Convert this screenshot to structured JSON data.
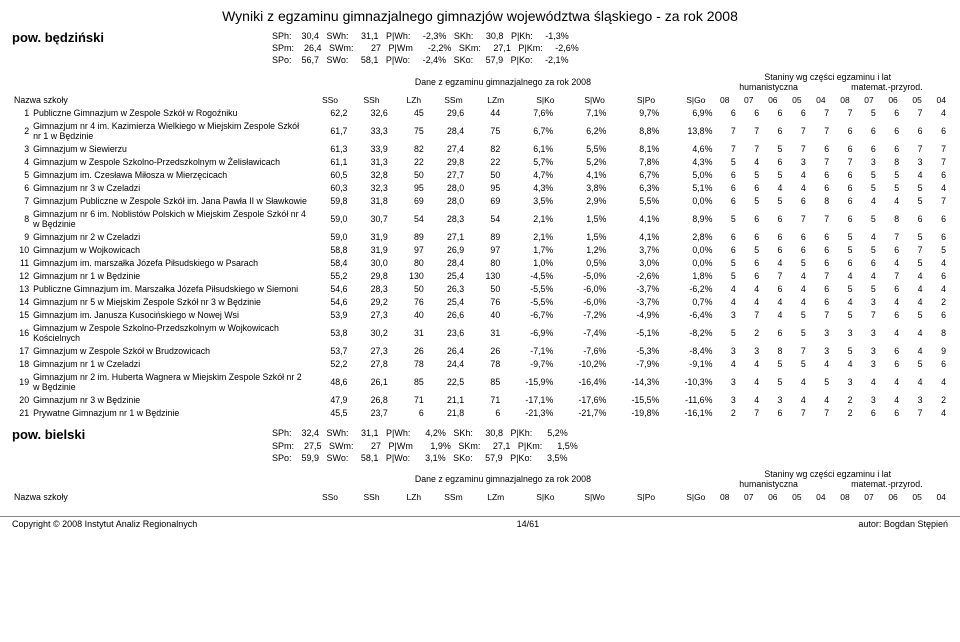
{
  "title": "Wyniki z egzaminu gimnazjalnego gimnazjów województwa śląskiego - za rok 2008",
  "districts": [
    {
      "name": "pow. będziński",
      "metrics": [
        [
          "SPh:",
          "30,4",
          "SWh:",
          "31,1",
          "P|Wh:",
          "-2,3%",
          "SKh:",
          "30,8",
          "P|Kh:",
          "-1,3%"
        ],
        [
          "SPm:",
          "26,4",
          "SWm:",
          "27",
          "P|Wm",
          "-2,2%",
          "SKm:",
          "27,1",
          "P|Km:",
          "-2,6%"
        ],
        [
          "SPo:",
          "56,7",
          "SWo:",
          "58,1",
          "P|Wo:",
          "-2,4%",
          "SKo:",
          "57,9",
          "P|Ko:",
          "-2,1%"
        ]
      ]
    },
    {
      "name": "pow. bielski",
      "metrics": [
        [
          "SPh:",
          "32,4",
          "SWh:",
          "31,1",
          "P|Wh:",
          "4,2%",
          "SKh:",
          "30,8",
          "P|Kh:",
          "5,2%"
        ],
        [
          "SPm:",
          "27,5",
          "SWm:",
          "27",
          "P|Wm",
          "1,9%",
          "SKm:",
          "27,1",
          "P|Km:",
          "1,5%"
        ],
        [
          "SPo:",
          "59,9",
          "SWo:",
          "58,1",
          "P|Wo:",
          "3,1%",
          "SKo:",
          "57,9",
          "P|Ko:",
          "3,5%"
        ]
      ]
    }
  ],
  "header": {
    "school_label": "Nazwa szkoły",
    "mid_title": "Dane z egzaminu gimnazjalnego za rok 2008",
    "right_title": "Staniny wg części egzaminu i lat",
    "right_sub_left": "humanistyczna",
    "right_sub_right": "matemat.-przyrod.",
    "cols_mid": [
      "SSo",
      "SSh",
      "LZh",
      "SSm",
      "LZm",
      "S|Ko",
      "S|Wo",
      "S|Po",
      "S|Go"
    ],
    "cols_right": [
      "08",
      "07",
      "06",
      "05",
      "04",
      "08",
      "07",
      "06",
      "05",
      "04"
    ]
  },
  "rows": [
    {
      "i": "1",
      "name": "Publiczne Gimnazjum w Zespole Szkół w Rogoźniku",
      "v": [
        "62,2",
        "32,6",
        "45",
        "29,6",
        "44",
        "7,6%",
        "7,1%",
        "9,7%",
        "6,9%"
      ],
      "s": [
        "6",
        "6",
        "6",
        "6",
        "7",
        "7",
        "5",
        "6",
        "7",
        "4"
      ]
    },
    {
      "i": "2",
      "name": "Gimnazjum nr 4 im. Kazimierza Wielkiego w Miejskim Zespole Szkół nr 1 w Będzinie",
      "v": [
        "61,7",
        "33,3",
        "75",
        "28,4",
        "75",
        "6,7%",
        "6,2%",
        "8,8%",
        "13,8%"
      ],
      "s": [
        "7",
        "7",
        "6",
        "7",
        "7",
        "6",
        "6",
        "6",
        "6",
        "6"
      ]
    },
    {
      "i": "3",
      "name": "Gimnazjum w Siewierzu",
      "v": [
        "61,3",
        "33,9",
        "82",
        "27,4",
        "82",
        "6,1%",
        "5,5%",
        "8,1%",
        "4,6%"
      ],
      "s": [
        "7",
        "7",
        "5",
        "7",
        "6",
        "6",
        "6",
        "6",
        "7",
        "7"
      ]
    },
    {
      "i": "4",
      "name": "Gimnazjum w Zespole Szkolno-Przedszkolnym w Żelisławicach",
      "v": [
        "61,1",
        "31,3",
        "22",
        "29,8",
        "22",
        "5,7%",
        "5,2%",
        "7,8%",
        "4,3%"
      ],
      "s": [
        "5",
        "4",
        "6",
        "3",
        "7",
        "7",
        "3",
        "8",
        "3",
        "7"
      ]
    },
    {
      "i": "5",
      "name": "Gimnazjum im. Czesława Miłosza w Mierzęcicach",
      "v": [
        "60,5",
        "32,8",
        "50",
        "27,7",
        "50",
        "4,7%",
        "4,1%",
        "6,7%",
        "5,0%"
      ],
      "s": [
        "6",
        "5",
        "5",
        "4",
        "6",
        "6",
        "5",
        "5",
        "4",
        "6"
      ]
    },
    {
      "i": "6",
      "name": "Gimnazjum nr 3 w Czeladzi",
      "v": [
        "60,3",
        "32,3",
        "95",
        "28,0",
        "95",
        "4,3%",
        "3,8%",
        "6,3%",
        "5,1%"
      ],
      "s": [
        "6",
        "6",
        "4",
        "4",
        "6",
        "6",
        "5",
        "5",
        "5",
        "4"
      ]
    },
    {
      "i": "7",
      "name": "Gimnazjum Publiczne w Zespole Szkół im. Jana Pawła II w Sławkowie",
      "v": [
        "59,8",
        "31,8",
        "69",
        "28,0",
        "69",
        "3,5%",
        "2,9%",
        "5,5%",
        "0,0%"
      ],
      "s": [
        "6",
        "5",
        "5",
        "6",
        "8",
        "6",
        "4",
        "4",
        "5",
        "7"
      ]
    },
    {
      "i": "8",
      "name": "Gimnazjum nr 6 im. Noblistów Polskich w Miejskim Zespole Szkół nr 4 w Będzinie",
      "v": [
        "59,0",
        "30,7",
        "54",
        "28,3",
        "54",
        "2,1%",
        "1,5%",
        "4,1%",
        "8,9%"
      ],
      "s": [
        "5",
        "6",
        "6",
        "7",
        "7",
        "6",
        "5",
        "8",
        "6",
        "6"
      ]
    },
    {
      "i": "9",
      "name": "Gimnazjum nr 2 w Czeladzi",
      "v": [
        "59,0",
        "31,9",
        "89",
        "27,1",
        "89",
        "2,1%",
        "1,5%",
        "4,1%",
        "2,8%"
      ],
      "s": [
        "6",
        "6",
        "6",
        "6",
        "6",
        "5",
        "4",
        "7",
        "5",
        "6"
      ]
    },
    {
      "i": "10",
      "name": "Gimnazjum w Wojkowicach",
      "v": [
        "58,8",
        "31,9",
        "97",
        "26,9",
        "97",
        "1,7%",
        "1,2%",
        "3,7%",
        "0,0%"
      ],
      "s": [
        "6",
        "5",
        "6",
        "6",
        "6",
        "5",
        "5",
        "6",
        "7",
        "5"
      ]
    },
    {
      "i": "11",
      "name": "Gimnazjum im. marszałka Józefa Piłsudskiego w Psarach",
      "v": [
        "58,4",
        "30,0",
        "80",
        "28,4",
        "80",
        "1,0%",
        "0,5%",
        "3,0%",
        "0,0%"
      ],
      "s": [
        "5",
        "6",
        "4",
        "5",
        "6",
        "6",
        "6",
        "4",
        "5",
        "4"
      ]
    },
    {
      "i": "12",
      "name": "Gimnazjum nr 1 w Będzinie",
      "v": [
        "55,2",
        "29,8",
        "130",
        "25,4",
        "130",
        "-4,5%",
        "-5,0%",
        "-2,6%",
        "1,8%"
      ],
      "s": [
        "5",
        "6",
        "7",
        "4",
        "7",
        "4",
        "4",
        "7",
        "4",
        "6"
      ]
    },
    {
      "i": "13",
      "name": "Publiczne Gimnazjum im. Marszałka Józefa Piłsudskiego w Siemoni",
      "v": [
        "54,6",
        "28,3",
        "50",
        "26,3",
        "50",
        "-5,5%",
        "-6,0%",
        "-3,7%",
        "-6,2%"
      ],
      "s": [
        "4",
        "4",
        "6",
        "4",
        "6",
        "5",
        "5",
        "6",
        "4",
        "4"
      ]
    },
    {
      "i": "14",
      "name": "Gimnazjum nr 5 w Miejskim Zespole Szkół nr 3 w Będzinie",
      "v": [
        "54,6",
        "29,2",
        "76",
        "25,4",
        "76",
        "-5,5%",
        "-6,0%",
        "-3,7%",
        "0,7%"
      ],
      "s": [
        "4",
        "4",
        "4",
        "4",
        "6",
        "4",
        "3",
        "4",
        "4",
        "2"
      ]
    },
    {
      "i": "15",
      "name": "Gimnazjum im. Janusza Kusocińskiego w Nowej Wsi",
      "v": [
        "53,9",
        "27,3",
        "40",
        "26,6",
        "40",
        "-6,7%",
        "-7,2%",
        "-4,9%",
        "-6,4%"
      ],
      "s": [
        "3",
        "7",
        "4",
        "5",
        "7",
        "5",
        "7",
        "6",
        "5",
        "6"
      ]
    },
    {
      "i": "16",
      "name": "Gimnazjum w Zespole Szkolno-Przedszkolnym w Wojkowicach Kościelnych",
      "v": [
        "53,8",
        "30,2",
        "31",
        "23,6",
        "31",
        "-6,9%",
        "-7,4%",
        "-5,1%",
        "-8,2%"
      ],
      "s": [
        "5",
        "2",
        "6",
        "5",
        "3",
        "3",
        "3",
        "4",
        "4",
        "8"
      ]
    },
    {
      "i": "17",
      "name": "Gimnazjum w Zespole Szkół w Brudzowicach",
      "v": [
        "53,7",
        "27,3",
        "26",
        "26,4",
        "26",
        "-7,1%",
        "-7,6%",
        "-5,3%",
        "-8,4%"
      ],
      "s": [
        "3",
        "3",
        "8",
        "7",
        "3",
        "5",
        "3",
        "6",
        "4",
        "9"
      ]
    },
    {
      "i": "18",
      "name": "Gimnazjum nr 1 w Czeladzi",
      "v": [
        "52,2",
        "27,8",
        "78",
        "24,4",
        "78",
        "-9,7%",
        "-10,2%",
        "-7,9%",
        "-9,1%"
      ],
      "s": [
        "4",
        "4",
        "5",
        "5",
        "4",
        "4",
        "3",
        "6",
        "5",
        "6"
      ]
    },
    {
      "i": "19",
      "name": "Gimnazjum nr 2 im. Huberta Wagnera w Miejskim Zespole Szkół nr 2 w Będzinie",
      "v": [
        "48,6",
        "26,1",
        "85",
        "22,5",
        "85",
        "-15,9%",
        "-16,4%",
        "-14,3%",
        "-10,3%"
      ],
      "s": [
        "3",
        "4",
        "5",
        "4",
        "5",
        "3",
        "4",
        "4",
        "4",
        "4"
      ]
    },
    {
      "i": "20",
      "name": "Gimnazjum nr 3 w Będzinie",
      "v": [
        "47,9",
        "26,8",
        "71",
        "21,1",
        "71",
        "-17,1%",
        "-17,6%",
        "-15,5%",
        "-11,6%"
      ],
      "s": [
        "3",
        "4",
        "3",
        "4",
        "4",
        "2",
        "3",
        "4",
        "3",
        "2"
      ]
    },
    {
      "i": "21",
      "name": "Prywatne Gimnazjum nr 1 w Będzinie",
      "v": [
        "45,5",
        "23,7",
        "6",
        "21,8",
        "6",
        "-21,3%",
        "-21,7%",
        "-19,8%",
        "-16,1%"
      ],
      "s": [
        "2",
        "7",
        "6",
        "7",
        "7",
        "2",
        "6",
        "6",
        "7",
        "4"
      ]
    }
  ],
  "footer": {
    "left": "Copyright © 2008 Instytut Analiz Regionalnych",
    "center": "14/61",
    "right": "autor: Bogdan Stępień"
  }
}
